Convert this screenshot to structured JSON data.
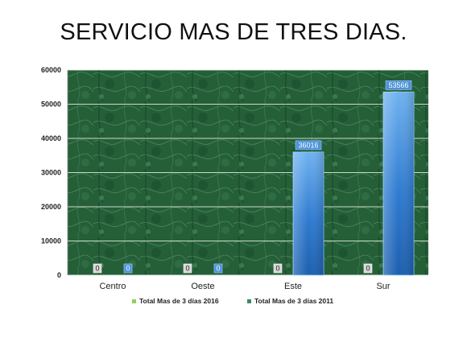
{
  "slide": {
    "title": "SERVICIO MAS DE TRES DIAS."
  },
  "chart_data": {
    "type": "bar",
    "categories": [
      "Centro",
      "Oeste",
      "Este",
      "Sur"
    ],
    "series": [
      {
        "name": "Total Mas de 3 días 2016",
        "values": [
          0,
          0,
          0,
          0
        ],
        "color": "#8fcf5a"
      },
      {
        "name": "Total Mas de 3 días 2011",
        "values": [
          0,
          0,
          36016,
          53566
        ],
        "color": "#3f86d6"
      }
    ],
    "y_ticks": [
      0,
      10000,
      20000,
      30000,
      40000,
      50000,
      60000
    ],
    "ylim": [
      0,
      60000
    ],
    "grid": true,
    "legend_position": "bottom",
    "plot_background": "green-marble-texture",
    "data_labels": true
  }
}
